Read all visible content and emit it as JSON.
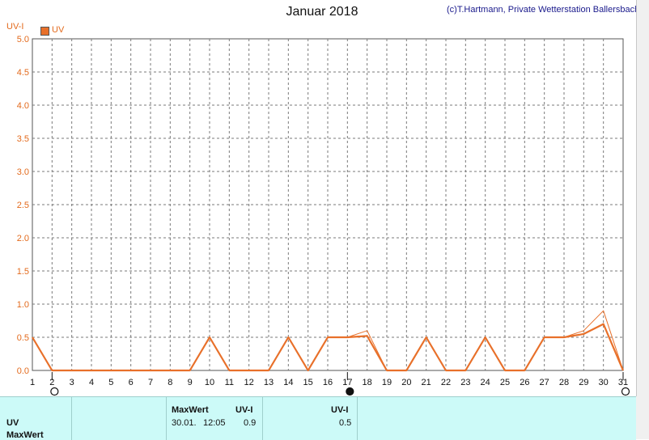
{
  "header": {
    "title": "Januar 2018",
    "copyright": "(c)T.Hartmann, Private Wetterstation Ballersbach"
  },
  "chart_data": {
    "type": "line",
    "title": "Januar 2018",
    "ylabel": "UV-I",
    "xlabel": "",
    "ylim": [
      0,
      5
    ],
    "xlim": [
      1,
      31
    ],
    "grid": true,
    "legend": "top-left",
    "y_ticks": [
      "0.0",
      "0.5",
      "1.0",
      "1.5",
      "2.0",
      "2.5",
      "3.0",
      "3.5",
      "4.0",
      "4.5",
      "5.0"
    ],
    "x_ticks": [
      "1",
      "2",
      "3",
      "4",
      "5",
      "6",
      "7",
      "8",
      "9",
      "10",
      "11",
      "12",
      "13",
      "14",
      "15",
      "16",
      "17",
      "18",
      "19",
      "20",
      "21",
      "22",
      "23",
      "24",
      "25",
      "26",
      "27",
      "28",
      "29",
      "30",
      "31"
    ],
    "moon_phases": [
      {
        "day": 2,
        "phase": "full"
      },
      {
        "day": 17,
        "phase": "new"
      },
      {
        "day": 31,
        "phase": "full"
      }
    ],
    "series": [
      {
        "name": "UV",
        "color": "#e8702a",
        "x": [
          1,
          2,
          3,
          4,
          5,
          6,
          7,
          8,
          9,
          10,
          11,
          12,
          13,
          14,
          15,
          16,
          17,
          18,
          19,
          20,
          21,
          22,
          23,
          24,
          25,
          26,
          27,
          28,
          29,
          30,
          31
        ],
        "values": [
          0.5,
          0,
          0,
          0,
          0,
          0,
          0,
          0,
          0,
          0.5,
          0,
          0,
          0,
          0.5,
          0,
          0.5,
          0.5,
          0.52,
          0,
          0,
          0.5,
          0,
          0,
          0.5,
          0,
          0,
          0.5,
          0.5,
          0.55,
          0.7,
          0
        ]
      },
      {
        "name": "",
        "color": "#e8702a",
        "x": [
          1,
          2,
          3,
          4,
          5,
          6,
          7,
          8,
          9,
          10,
          11,
          12,
          13,
          14,
          15,
          16,
          17,
          18,
          19,
          20,
          21,
          22,
          23,
          24,
          25,
          26,
          27,
          28,
          29,
          30,
          31
        ],
        "values": [
          0.5,
          0,
          0,
          0,
          0,
          0,
          0,
          0,
          0,
          0.5,
          0,
          0,
          0,
          0.5,
          0,
          0.5,
          0.5,
          0.6,
          0,
          0,
          0.5,
          0,
          0,
          0.5,
          0,
          0,
          0.5,
          0.5,
          0.6,
          0.9,
          0
        ]
      }
    ]
  },
  "table": {
    "row_labels": [
      "UV",
      "MaxWert"
    ],
    "col_maxwert_header": "MaxWert",
    "col_uvi_header": "UV-I",
    "max_date": "30.01.",
    "max_time": "12:05",
    "max_value": "0.9",
    "avg_header": "UV-I",
    "avg_value": "0.5"
  }
}
